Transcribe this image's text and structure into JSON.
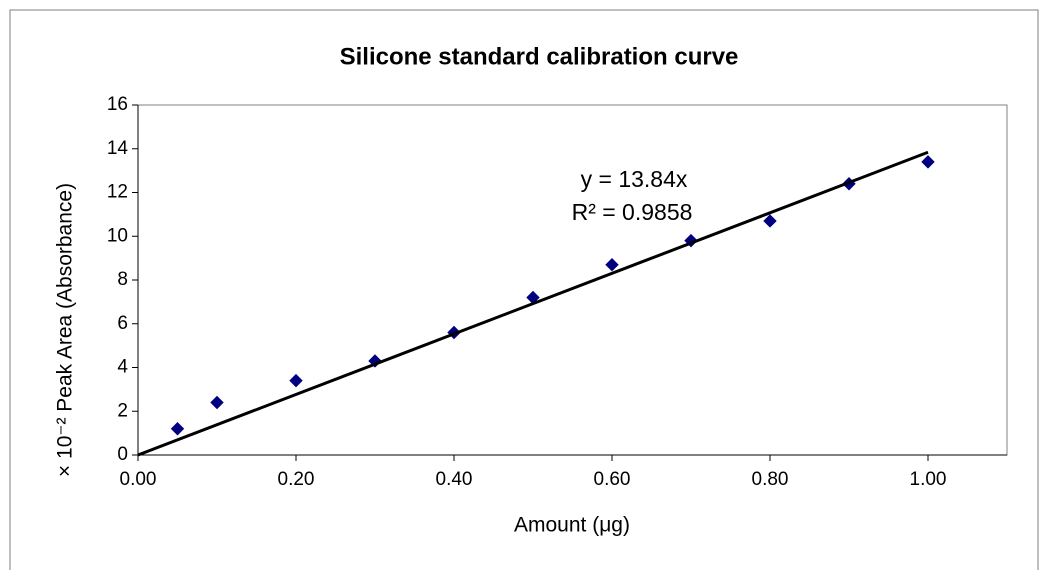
{
  "chart_data": {
    "type": "scatter",
    "title": "Silicone standard calibration curve",
    "x_label": "Amount (μg)",
    "y_label": "× 10⁻² Peak Area (Absorbance)",
    "series": [
      {
        "color": "#000080",
        "x": [
          0.05,
          0.1,
          0.2,
          0.3,
          0.4,
          0.5,
          0.6,
          0.7,
          0.8,
          0.9,
          1.0
        ],
        "values": [
          1.2,
          2.4,
          3.4,
          4.3,
          5.6,
          7.2,
          8.7,
          9.8,
          10.7,
          12.4,
          13.4
        ]
      }
    ],
    "trendline": {
      "slope": 13.84,
      "color": "#000000",
      "equation": "y = 13.84x",
      "r_squared": "R² = 0.9858"
    },
    "xlim": [
      0,
      1.1
    ],
    "xticks": [
      {
        "value": 0,
        "label": "0.00"
      },
      {
        "value": 0.2,
        "label": "0.20"
      },
      {
        "value": 0.4,
        "label": "0.40"
      },
      {
        "value": 0.6,
        "label": "0.60"
      },
      {
        "value": 0.8,
        "label": "0.80"
      },
      {
        "value": 1.0,
        "label": "1.00"
      }
    ],
    "ylim": [
      0,
      16
    ],
    "yticks": [
      0,
      2,
      4,
      6,
      8,
      10,
      12,
      14,
      16
    ],
    "grid": false
  }
}
